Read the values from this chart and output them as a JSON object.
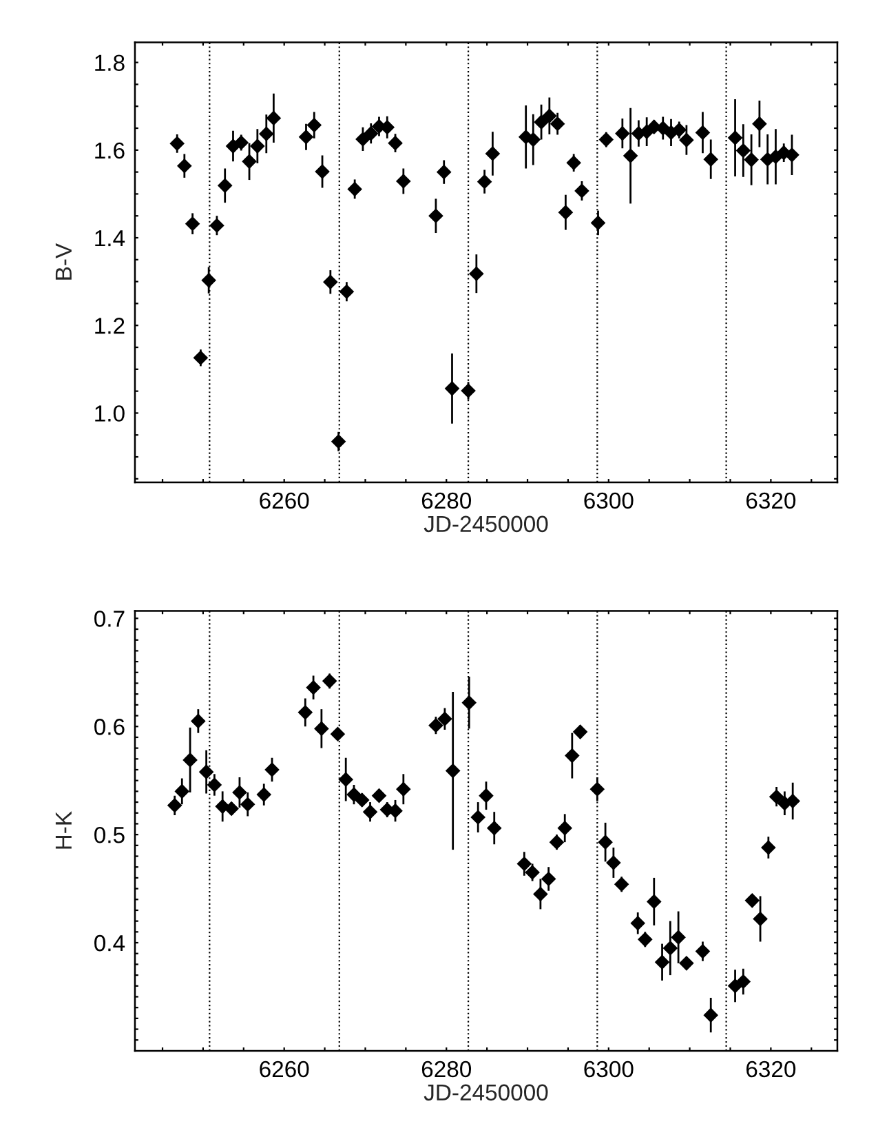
{
  "chart_data": [
    {
      "type": "scatter",
      "xlabel": "JD-2450000",
      "ylabel": "B-V",
      "marker": "diamond",
      "grid": false,
      "legend": false,
      "xlim": [
        6241.6,
        6328.2
      ],
      "ylim": [
        0.842,
        1.846
      ],
      "xticks": [
        {
          "value": 6245,
          "label": null
        },
        {
          "value": 6250,
          "label": null
        },
        {
          "value": 6255,
          "label": null
        },
        6260,
        {
          "value": 6265,
          "label": null
        },
        {
          "value": 6270,
          "label": null
        },
        {
          "value": 6275,
          "label": null
        },
        6280,
        {
          "value": 6285,
          "label": null
        },
        {
          "value": 6290,
          "label": null
        },
        {
          "value": 6295,
          "label": null
        },
        6300,
        {
          "value": 6305,
          "label": null
        },
        {
          "value": 6310,
          "label": null
        },
        {
          "value": 6315,
          "label": null
        },
        6320,
        {
          "value": 6325,
          "label": null
        }
      ],
      "yticks": [
        {
          "value": 0.85,
          "label": null
        },
        {
          "value": 0.9,
          "label": null
        },
        {
          "value": 0.95,
          "label": null
        },
        {
          "value": 1.0,
          "label": "1.0"
        },
        {
          "value": 1.05,
          "label": null
        },
        {
          "value": 1.1,
          "label": null
        },
        {
          "value": 1.15,
          "label": null
        },
        1.2,
        {
          "value": 1.25,
          "label": null
        },
        {
          "value": 1.3,
          "label": null
        },
        {
          "value": 1.35,
          "label": null
        },
        1.4,
        {
          "value": 1.45,
          "label": null
        },
        {
          "value": 1.5,
          "label": null
        },
        {
          "value": 1.55,
          "label": null
        },
        1.6,
        {
          "value": 1.65,
          "label": null
        },
        {
          "value": 1.7,
          "label": null
        },
        {
          "value": 1.75,
          "label": null
        },
        1.8
      ],
      "ref_lines": [
        {
          "axis": "x",
          "value": 6250.8,
          "line_style": "dotted",
          "color": "#000000"
        },
        {
          "axis": "x",
          "value": 6266.8,
          "line_style": "dotted",
          "color": "#000000"
        },
        {
          "axis": "x",
          "value": 6282.7,
          "line_style": "dotted",
          "color": "#000000"
        },
        {
          "axis": "x",
          "value": 6298.6,
          "line_style": "dotted",
          "color": "#000000"
        },
        {
          "axis": "x",
          "value": 6314.5,
          "line_style": "dotted",
          "color": "#000000"
        }
      ],
      "series": [
        {
          "color": "#000000",
          "x": [
            6246.8,
            6247.7,
            6248.7,
            6249.7,
            6250.7,
            6251.7,
            6252.7,
            6253.7,
            6254.7,
            6255.7,
            6256.7,
            6257.8,
            6258.7,
            6262.7,
            6263.7,
            6264.7,
            6265.7,
            6266.7,
            6267.7,
            6268.7,
            6269.7,
            6270.7,
            6271.7,
            6272.7,
            6273.7,
            6274.7,
            6278.7,
            6279.7,
            6280.7,
            6282.7,
            6283.7,
            6284.7,
            6285.7,
            6289.8,
            6290.7,
            6291.7,
            6292.7,
            6293.7,
            6294.7,
            6295.7,
            6296.7,
            6298.7,
            6299.7,
            6301.7,
            6302.7,
            6303.7,
            6304.7,
            6305.6,
            6306.7,
            6307.7,
            6308.7,
            6309.6,
            6311.6,
            6312.6,
            6315.6,
            6316.6,
            6317.6,
            6318.6,
            6319.6,
            6320.6,
            6321.6,
            6322.6
          ],
          "values": [
            1.615,
            1.564,
            1.432,
            1.126,
            1.303,
            1.428,
            1.519,
            1.609,
            1.617,
            1.574,
            1.609,
            1.637,
            1.673,
            1.63,
            1.657,
            1.551,
            1.299,
            0.935,
            1.277,
            1.511,
            1.625,
            1.638,
            1.654,
            1.652,
            1.616,
            1.529,
            1.45,
            1.55,
            1.056,
            1.051,
            1.318,
            1.528,
            1.592,
            1.63,
            1.624,
            1.664,
            1.678,
            1.66,
            1.458,
            1.571,
            1.507,
            1.434,
            1.624,
            1.638,
            1.587,
            1.638,
            1.642,
            1.653,
            1.65,
            1.64,
            1.646,
            1.623,
            1.64,
            1.579,
            1.628,
            1.599,
            1.578,
            1.66,
            1.579,
            1.585,
            1.594,
            1.589
          ],
          "errors": [
            0.021,
            0.027,
            0.024,
            0.019,
            0.03,
            0.022,
            0.039,
            0.035,
            0.018,
            0.042,
            0.039,
            0.044,
            0.056,
            0.03,
            0.03,
            0.037,
            0.027,
            0.022,
            0.022,
            0.022,
            0.027,
            0.023,
            0.022,
            0.025,
            0.021,
            0.029,
            0.039,
            0.027,
            0.08,
            0.02,
            0.044,
            0.027,
            0.05,
            0.072,
            0.058,
            0.04,
            0.042,
            0.025,
            0.04,
            0.02,
            0.022,
            0.028,
            0.017,
            0.034,
            0.109,
            0.03,
            0.033,
            0.015,
            0.026,
            0.031,
            0.019,
            0.034,
            0.047,
            0.045,
            0.088,
            0.06,
            0.058,
            0.053,
            0.057,
            0.063,
            0.021,
            0.046
          ]
        }
      ]
    },
    {
      "type": "scatter",
      "xlabel": "JD-2450000",
      "ylabel": "H-K",
      "marker": "diamond",
      "grid": false,
      "legend": false,
      "xlim": [
        6241.6,
        6328.2
      ],
      "ylim": [
        0.3,
        0.707
      ],
      "xticks": [
        {
          "value": 6245,
          "label": null
        },
        {
          "value": 6250,
          "label": null
        },
        {
          "value": 6255,
          "label": null
        },
        6260,
        {
          "value": 6265,
          "label": null
        },
        {
          "value": 6270,
          "label": null
        },
        {
          "value": 6275,
          "label": null
        },
        6280,
        {
          "value": 6285,
          "label": null
        },
        {
          "value": 6290,
          "label": null
        },
        {
          "value": 6295,
          "label": null
        },
        6300,
        {
          "value": 6305,
          "label": null
        },
        {
          "value": 6310,
          "label": null
        },
        {
          "value": 6315,
          "label": null
        },
        6320,
        {
          "value": 6325,
          "label": null
        }
      ],
      "yticks": [
        {
          "value": 0.31,
          "label": null
        },
        {
          "value": 0.32,
          "label": null
        },
        {
          "value": 0.33,
          "label": null
        },
        {
          "value": 0.34,
          "label": null
        },
        {
          "value": 0.35,
          "label": null
        },
        {
          "value": 0.36,
          "label": null
        },
        {
          "value": 0.37,
          "label": null
        },
        {
          "value": 0.38,
          "label": null
        },
        {
          "value": 0.39,
          "label": null
        },
        0.4,
        {
          "value": 0.41,
          "label": null
        },
        {
          "value": 0.42,
          "label": null
        },
        {
          "value": 0.43,
          "label": null
        },
        {
          "value": 0.44,
          "label": null
        },
        {
          "value": 0.45,
          "label": null
        },
        {
          "value": 0.46,
          "label": null
        },
        {
          "value": 0.47,
          "label": null
        },
        {
          "value": 0.48,
          "label": null
        },
        {
          "value": 0.49,
          "label": null
        },
        0.5,
        {
          "value": 0.51,
          "label": null
        },
        {
          "value": 0.52,
          "label": null
        },
        {
          "value": 0.53,
          "label": null
        },
        {
          "value": 0.54,
          "label": null
        },
        {
          "value": 0.55,
          "label": null
        },
        {
          "value": 0.56,
          "label": null
        },
        {
          "value": 0.57,
          "label": null
        },
        {
          "value": 0.58,
          "label": null
        },
        {
          "value": 0.59,
          "label": null
        },
        0.6,
        {
          "value": 0.61,
          "label": null
        },
        {
          "value": 0.62,
          "label": null
        },
        {
          "value": 0.63,
          "label": null
        },
        {
          "value": 0.64,
          "label": null
        },
        {
          "value": 0.65,
          "label": null
        },
        {
          "value": 0.66,
          "label": null
        },
        {
          "value": 0.67,
          "label": null
        },
        {
          "value": 0.68,
          "label": null
        },
        {
          "value": 0.69,
          "label": null
        },
        0.7
      ],
      "ref_lines": [
        {
          "axis": "x",
          "value": 6250.8,
          "line_style": "dotted",
          "color": "#000000"
        },
        {
          "axis": "x",
          "value": 6266.8,
          "line_style": "dotted",
          "color": "#000000"
        },
        {
          "axis": "x",
          "value": 6282.7,
          "line_style": "dotted",
          "color": "#000000"
        },
        {
          "axis": "x",
          "value": 6298.6,
          "line_style": "dotted",
          "color": "#000000"
        },
        {
          "axis": "x",
          "value": 6314.5,
          "line_style": "dotted",
          "color": "#000000"
        }
      ],
      "series": [
        {
          "color": "#000000",
          "x": [
            6246.5,
            6247.4,
            6248.4,
            6249.4,
            6250.4,
            6251.4,
            6252.4,
            6253.5,
            6254.5,
            6255.5,
            6257.5,
            6258.5,
            6262.6,
            6263.6,
            6264.6,
            6265.6,
            6266.6,
            6267.6,
            6268.6,
            6269.6,
            6270.6,
            6271.7,
            6272.7,
            6273.7,
            6274.7,
            6278.7,
            6279.8,
            6280.8,
            6282.8,
            6283.9,
            6284.9,
            6285.9,
            6289.6,
            6290.6,
            6291.6,
            6292.6,
            6293.6,
            6294.6,
            6295.5,
            6296.5,
            6298.6,
            6299.6,
            6300.6,
            6301.6,
            6303.6,
            6304.5,
            6305.6,
            6306.6,
            6307.6,
            6308.6,
            6309.6,
            6311.6,
            6312.6,
            6315.6,
            6316.6,
            6317.7,
            6318.7,
            6319.7,
            6320.7,
            6321.7,
            6322.7
          ],
          "values": [
            0.527,
            0.54,
            0.569,
            0.605,
            0.558,
            0.546,
            0.526,
            0.524,
            0.539,
            0.528,
            0.537,
            0.56,
            0.613,
            0.636,
            0.598,
            0.642,
            0.593,
            0.551,
            0.537,
            0.532,
            0.521,
            0.536,
            0.523,
            0.522,
            0.542,
            0.601,
            0.607,
            0.559,
            0.622,
            0.516,
            0.536,
            0.506,
            0.473,
            0.465,
            0.445,
            0.459,
            0.493,
            0.506,
            0.573,
            0.595,
            0.542,
            0.493,
            0.474,
            0.454,
            0.418,
            0.403,
            0.438,
            0.382,
            0.395,
            0.405,
            0.381,
            0.392,
            0.333,
            0.36,
            0.364,
            0.439,
            0.422,
            0.488,
            0.535,
            0.529,
            0.531
          ],
          "errors": [
            0.009,
            0.012,
            0.03,
            0.011,
            0.02,
            0.01,
            0.014,
            0.006,
            0.014,
            0.011,
            0.01,
            0.011,
            0.013,
            0.011,
            0.018,
            0.007,
            0.004,
            0.02,
            0.009,
            0.006,
            0.009,
            0.005,
            0.007,
            0.01,
            0.014,
            0.008,
            0.01,
            0.073,
            0.024,
            0.014,
            0.013,
            0.015,
            0.011,
            0.008,
            0.014,
            0.011,
            0.007,
            0.013,
            0.021,
            0.006,
            0.011,
            0.018,
            0.014,
            0.007,
            0.01,
            0.007,
            0.022,
            0.017,
            0.025,
            0.024,
            0.002,
            0.009,
            0.016,
            0.015,
            0.012,
            0.006,
            0.021,
            0.01,
            0.009,
            0.011,
            0.017
          ]
        }
      ]
    }
  ]
}
